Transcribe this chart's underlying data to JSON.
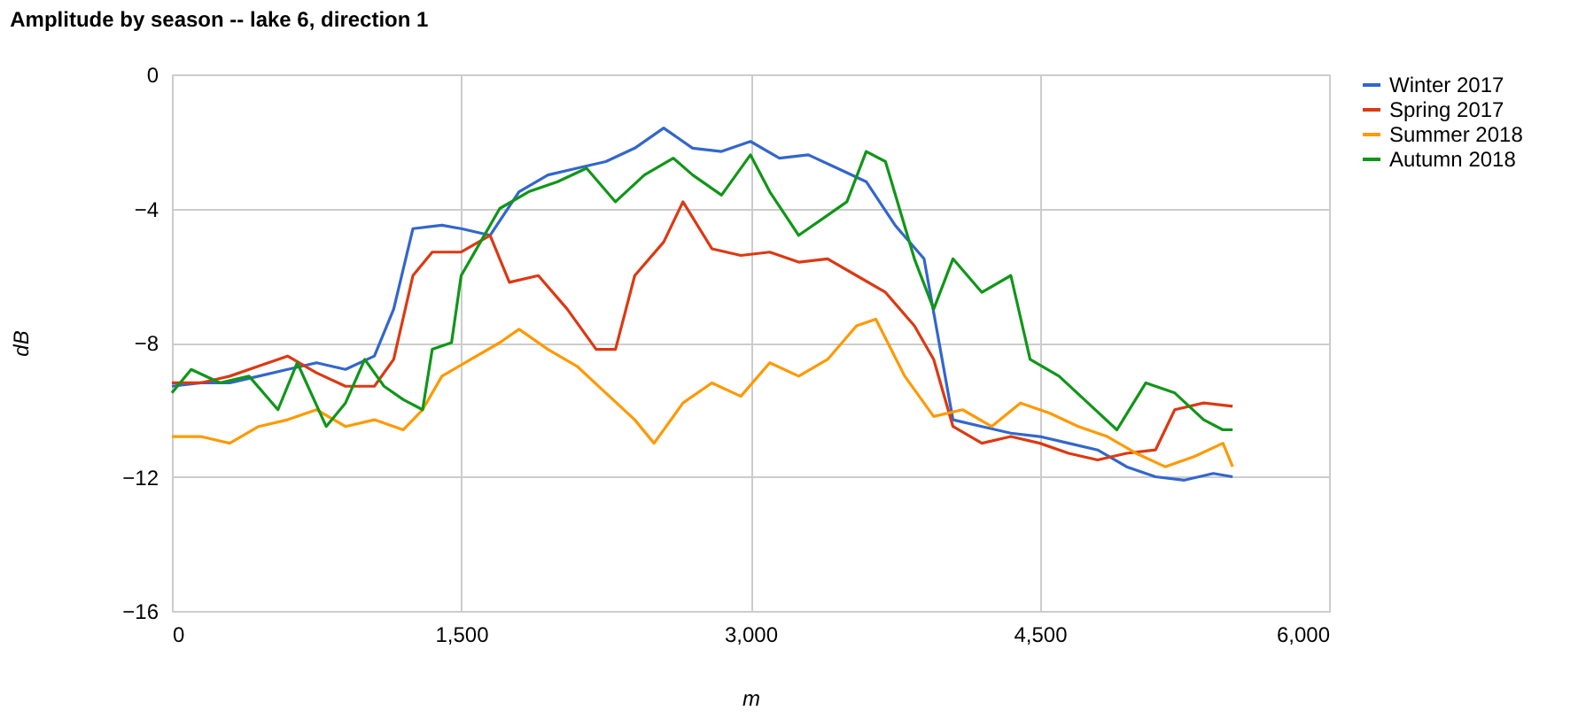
{
  "chart_data": {
    "type": "line",
    "title": "Amplitude by season -- lake 6, direction 1",
    "xlabel": "m",
    "ylabel": "dB",
    "xlim": [
      0,
      6000
    ],
    "xticks": [
      {
        "value": 0,
        "label": "0"
      },
      {
        "value": 1500,
        "label": "1,500"
      },
      {
        "value": 3000,
        "label": "3,000"
      },
      {
        "value": 4500,
        "label": "4,500"
      },
      {
        "value": 6000,
        "label": "6,000"
      }
    ],
    "ylim": [
      -16,
      0
    ],
    "yticks": [
      -16,
      -12,
      -8,
      -4,
      0
    ],
    "grid": true,
    "legend": "top right",
    "line_style": "solid",
    "marker": "none",
    "series": [
      {
        "name": "Winter 2017",
        "color": "#3366cc",
        "x": [
          0,
          150,
          300,
          450,
          600,
          750,
          900,
          1050,
          1150,
          1250,
          1400,
          1500,
          1650,
          1800,
          1950,
          2100,
          2250,
          2400,
          2550,
          2700,
          2850,
          3000,
          3150,
          3300,
          3450,
          3600,
          3750,
          3900,
          4050,
          4200,
          4350,
          4500,
          4650,
          4800,
          4950,
          5100,
          5250,
          5400,
          5500
        ],
        "values": [
          -9.3,
          -9.2,
          -9.2,
          -9.0,
          -8.8,
          -8.6,
          -8.8,
          -8.4,
          -7.0,
          -4.6,
          -4.5,
          -4.6,
          -4.8,
          -3.5,
          -3.0,
          -2.8,
          -2.6,
          -2.2,
          -1.6,
          -2.2,
          -2.3,
          -2.0,
          -2.5,
          -2.4,
          -2.8,
          -3.2,
          -4.5,
          -5.5,
          -10.3,
          -10.5,
          -10.7,
          -10.8,
          -11.0,
          -11.2,
          -11.7,
          -12.0,
          -12.1,
          -11.9,
          -12.0
        ]
      },
      {
        "name": "Spring 2017",
        "color": "#dc3912",
        "x": [
          0,
          150,
          300,
          450,
          600,
          750,
          900,
          1050,
          1150,
          1250,
          1350,
          1500,
          1650,
          1750,
          1900,
          2050,
          2200,
          2300,
          2400,
          2550,
          2650,
          2800,
          2950,
          3100,
          3250,
          3400,
          3550,
          3700,
          3850,
          3950,
          4050,
          4200,
          4350,
          4500,
          4650,
          4800,
          4950,
          5100,
          5200,
          5350,
          5500
        ],
        "values": [
          -9.2,
          -9.2,
          -9.0,
          -8.7,
          -8.4,
          -8.9,
          -9.3,
          -9.3,
          -8.5,
          -6.0,
          -5.3,
          -5.3,
          -4.8,
          -6.2,
          -6.0,
          -7.0,
          -8.2,
          -8.2,
          -6.0,
          -5.0,
          -3.8,
          -5.2,
          -5.4,
          -5.3,
          -5.6,
          -5.5,
          -6.0,
          -6.5,
          -7.5,
          -8.5,
          -10.5,
          -11.0,
          -10.8,
          -11.0,
          -11.3,
          -11.5,
          -11.3,
          -11.2,
          -10.0,
          -9.8,
          -9.9
        ]
      },
      {
        "name": "Summer 2018",
        "color": "#ff9900",
        "x": [
          0,
          150,
          300,
          450,
          600,
          750,
          900,
          1050,
          1200,
          1300,
          1400,
          1550,
          1700,
          1800,
          1950,
          2100,
          2250,
          2400,
          2500,
          2650,
          2800,
          2950,
          3100,
          3250,
          3400,
          3550,
          3650,
          3800,
          3950,
          4100,
          4250,
          4400,
          4550,
          4700,
          4850,
          5000,
          5150,
          5300,
          5450,
          5500
        ],
        "values": [
          -10.8,
          -10.8,
          -11.0,
          -10.5,
          -10.3,
          -10.0,
          -10.5,
          -10.3,
          -10.6,
          -10.0,
          -9.0,
          -8.5,
          -8.0,
          -7.6,
          -8.2,
          -8.7,
          -9.5,
          -10.3,
          -11.0,
          -9.8,
          -9.2,
          -9.6,
          -8.6,
          -9.0,
          -8.5,
          -7.5,
          -7.3,
          -9.0,
          -10.2,
          -10.0,
          -10.5,
          -9.8,
          -10.1,
          -10.5,
          -10.8,
          -11.3,
          -11.7,
          -11.4,
          -11.0,
          -11.7
        ]
      },
      {
        "name": "Autumn 2018",
        "color": "#109618",
        "x": [
          0,
          100,
          250,
          400,
          550,
          650,
          800,
          900,
          1000,
          1100,
          1200,
          1300,
          1350,
          1450,
          1500,
          1600,
          1700,
          1850,
          2000,
          2150,
          2300,
          2450,
          2600,
          2700,
          2850,
          3000,
          3100,
          3250,
          3400,
          3500,
          3600,
          3700,
          3850,
          3950,
          4050,
          4200,
          4350,
          4450,
          4600,
          4750,
          4900,
          5050,
          5200,
          5350,
          5450,
          5500
        ],
        "values": [
          -9.5,
          -8.8,
          -9.2,
          -9.0,
          -10.0,
          -8.6,
          -10.5,
          -9.8,
          -8.5,
          -9.3,
          -9.7,
          -10.0,
          -8.2,
          -8.0,
          -6.0,
          -5.0,
          -4.0,
          -3.5,
          -3.2,
          -2.8,
          -3.8,
          -3.0,
          -2.5,
          -3.0,
          -3.6,
          -2.4,
          -3.5,
          -4.8,
          -4.2,
          -3.8,
          -2.3,
          -2.6,
          -5.5,
          -7.0,
          -5.5,
          -6.5,
          -6.0,
          -8.5,
          -9.0,
          -9.8,
          -10.6,
          -9.2,
          -9.5,
          -10.3,
          -10.6,
          -10.6
        ]
      }
    ]
  }
}
